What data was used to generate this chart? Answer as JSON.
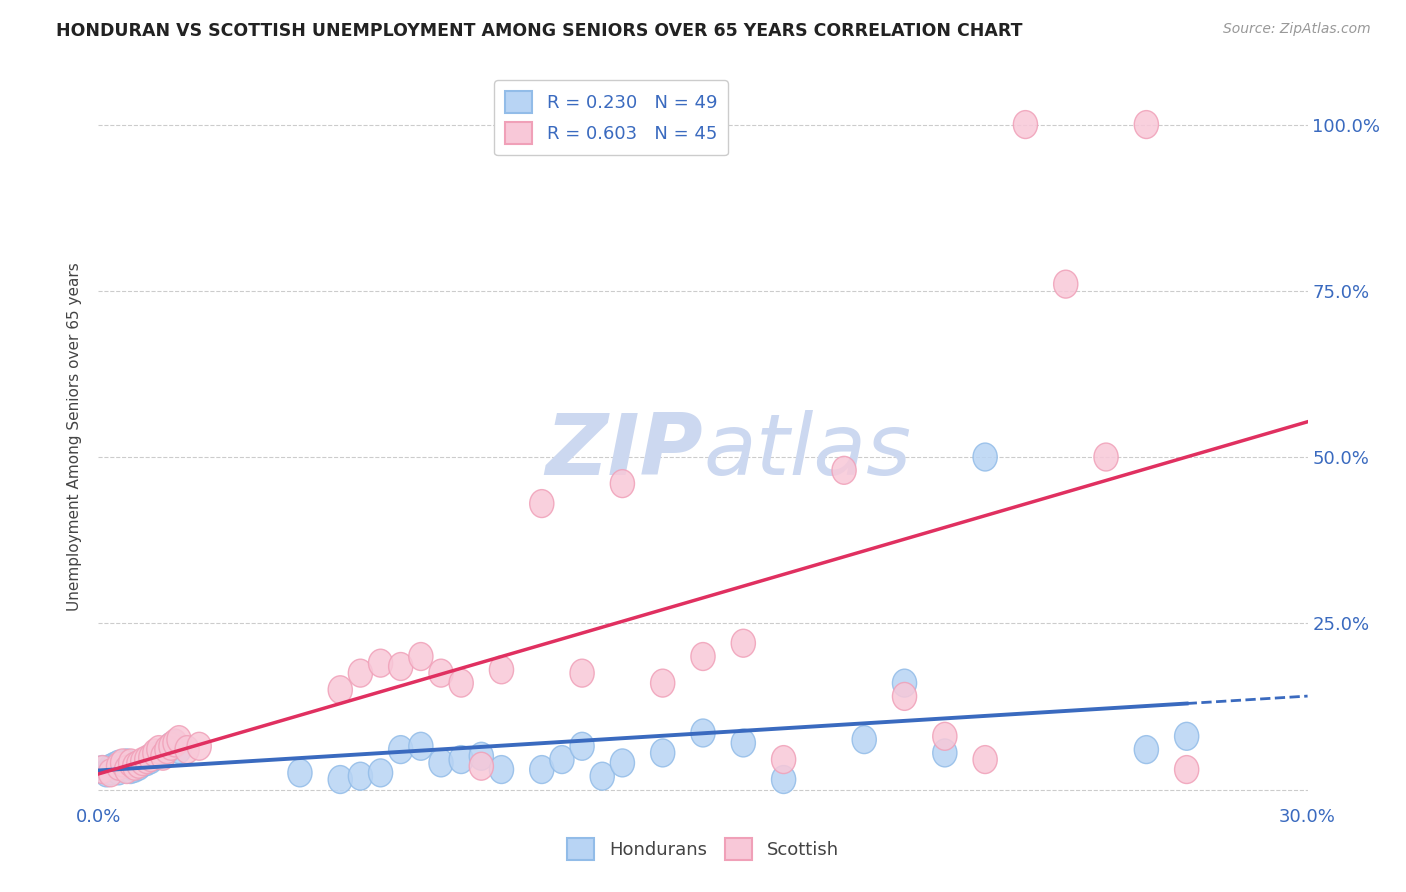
{
  "title": "HONDURAN VS SCOTTISH UNEMPLOYMENT AMONG SENIORS OVER 65 YEARS CORRELATION CHART",
  "source": "Source: ZipAtlas.com",
  "ylabel": "Unemployment Among Seniors over 65 years",
  "xlim": [
    0.0,
    0.3
  ],
  "ylim": [
    -0.02,
    1.08
  ],
  "honduran_R": 0.23,
  "honduran_N": 49,
  "scottish_R": 0.603,
  "scottish_N": 45,
  "honduran_color": "#92bce8",
  "honduran_fill": "#b8d4f4",
  "scottish_color": "#f0a0b8",
  "scottish_fill": "#f8c8d8",
  "line_honduran_color": "#3a6abf",
  "line_scottish_color": "#e03060",
  "watermark_color": "#ccd8f0",
  "honduran_x": [
    0.001,
    0.002,
    0.003,
    0.003,
    0.004,
    0.005,
    0.005,
    0.006,
    0.007,
    0.007,
    0.008,
    0.009,
    0.01,
    0.011,
    0.012,
    0.013,
    0.013,
    0.014,
    0.015,
    0.016,
    0.017,
    0.018,
    0.019,
    0.02,
    0.05,
    0.06,
    0.065,
    0.07,
    0.075,
    0.08,
    0.085,
    0.09,
    0.095,
    0.1,
    0.11,
    0.115,
    0.12,
    0.125,
    0.13,
    0.14,
    0.15,
    0.16,
    0.17,
    0.19,
    0.2,
    0.21,
    0.22,
    0.26,
    0.27
  ],
  "honduran_y": [
    0.03,
    0.025,
    0.032,
    0.028,
    0.035,
    0.028,
    0.038,
    0.033,
    0.04,
    0.038,
    0.03,
    0.032,
    0.035,
    0.04,
    0.042,
    0.045,
    0.048,
    0.05,
    0.052,
    0.055,
    0.058,
    0.065,
    0.068,
    0.06,
    0.025,
    0.015,
    0.02,
    0.025,
    0.06,
    0.065,
    0.04,
    0.045,
    0.05,
    0.03,
    0.03,
    0.045,
    0.065,
    0.02,
    0.04,
    0.055,
    0.085,
    0.07,
    0.015,
    0.075,
    0.16,
    0.055,
    0.5,
    0.06,
    0.08
  ],
  "scottish_x": [
    0.001,
    0.003,
    0.005,
    0.006,
    0.007,
    0.008,
    0.009,
    0.01,
    0.011,
    0.012,
    0.013,
    0.014,
    0.015,
    0.016,
    0.017,
    0.018,
    0.019,
    0.02,
    0.022,
    0.025,
    0.06,
    0.065,
    0.07,
    0.075,
    0.08,
    0.085,
    0.09,
    0.095,
    0.1,
    0.11,
    0.12,
    0.13,
    0.14,
    0.15,
    0.16,
    0.17,
    0.185,
    0.2,
    0.21,
    0.22,
    0.23,
    0.24,
    0.25,
    0.26,
    0.27
  ],
  "scottish_y": [
    0.03,
    0.025,
    0.035,
    0.04,
    0.03,
    0.04,
    0.035,
    0.038,
    0.042,
    0.045,
    0.048,
    0.055,
    0.06,
    0.05,
    0.06,
    0.065,
    0.07,
    0.075,
    0.06,
    0.065,
    0.15,
    0.175,
    0.19,
    0.185,
    0.2,
    0.175,
    0.16,
    0.035,
    0.18,
    0.43,
    0.175,
    0.46,
    0.16,
    0.2,
    0.22,
    0.045,
    0.48,
    0.14,
    0.08,
    0.045,
    1.0,
    0.76,
    0.5,
    1.0,
    0.03
  ]
}
